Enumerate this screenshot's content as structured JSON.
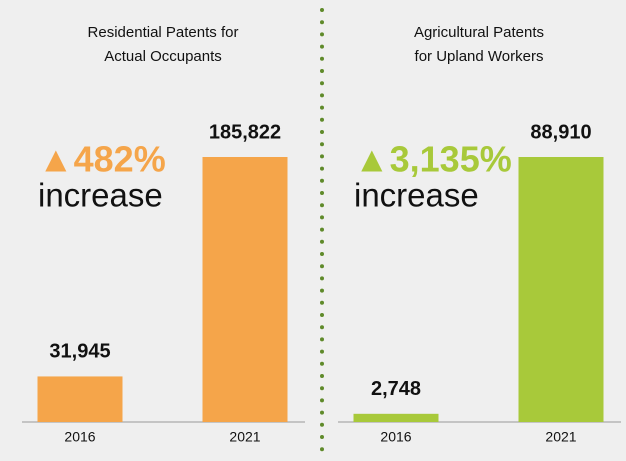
{
  "chart_data": [
    {
      "type": "bar",
      "title": [
        "Residential Patents for",
        "Actual Occupants"
      ],
      "categories": [
        "2016",
        "2021"
      ],
      "values": [
        31945,
        185822
      ],
      "value_labels": [
        "31,945",
        "185,822"
      ],
      "color": "#f5a54a",
      "annotations": [
        "▲482%",
        "increase"
      ]
    },
    {
      "type": "bar",
      "title": [
        "Agricultural Patents",
        "for Upland Workers"
      ],
      "categories": [
        "2016",
        "2021"
      ],
      "values": [
        2748,
        88910
      ],
      "value_labels": [
        "2,748",
        "88,910"
      ],
      "color": "#a8c93a",
      "annotations": [
        "▲3,135%",
        "increase"
      ]
    }
  ]
}
